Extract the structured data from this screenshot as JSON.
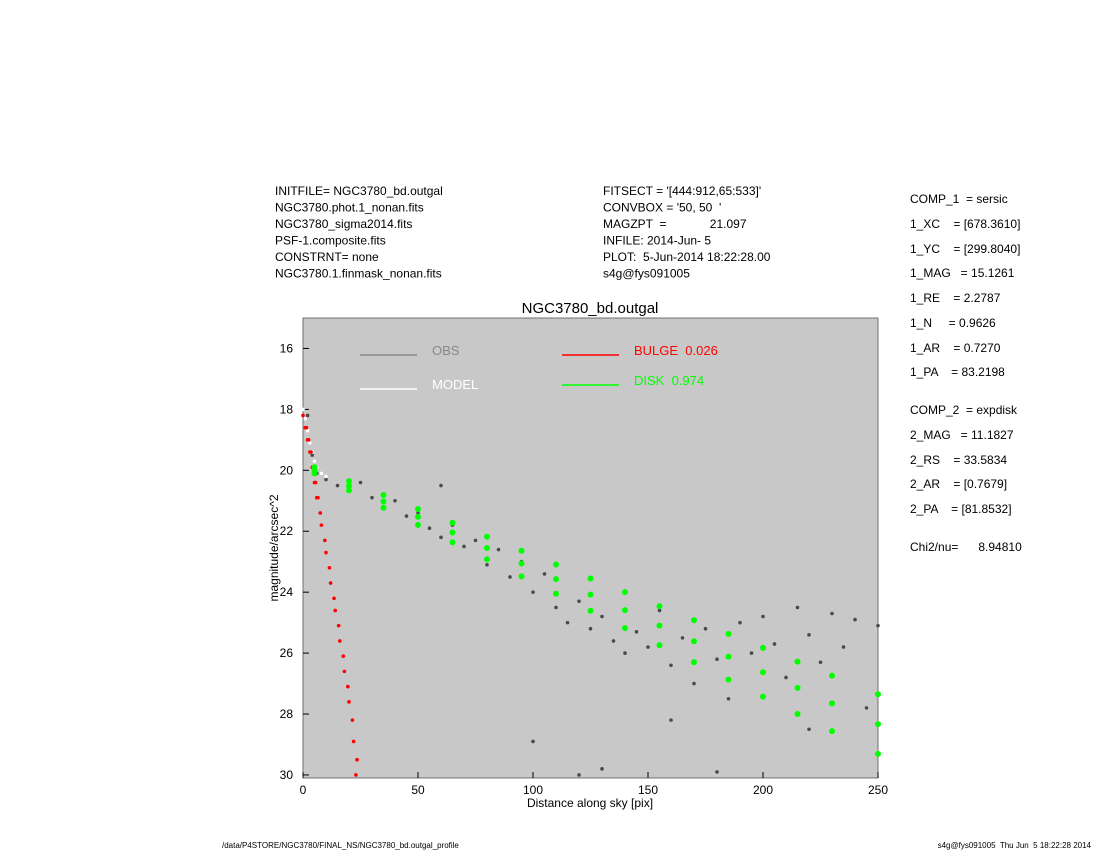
{
  "header": {
    "left": [
      "INITFILE= NGC3780_bd.outgal",
      "NGC3780.phot.1_nonan.fits",
      "NGC3780_sigma2014.fits",
      "PSF-1.composite.fits",
      "CONSTRNT= none",
      "NGC3780.1.finmask_nonan.fits"
    ],
    "middle": [
      "FITSECT = '[444:912,65:533]'",
      "CONVBOX = '50, 50  '",
      "MAGZPT  =             21.097",
      "INFILE: 2014-Jun- 5",
      "PLOT:  5-Jun-2014 18:22:28.00",
      "s4g@fys091005"
    ]
  },
  "params": [
    "COMP_1  = sersic",
    "1_XC    = [678.3610]",
    "1_YC    = [299.8040]",
    "1_MAG   = 15.1261",
    "1_RE    = 2.2787",
    "1_N     = 0.9626",
    "1_AR    = 0.7270",
    "1_PA    = 83.2198",
    "COMP_2  = expdisk",
    "2_MAG   = 11.1827",
    "2_RS    = 33.5834",
    "2_AR    = [0.7679]",
    "2_PA    = [81.8532]",
    "Chi2/nu=      8.94810"
  ],
  "footer": {
    "left": "/data/P4STORE/NGC3780/FINAL_NS/NGC3780_bd.outgal_profile",
    "right": "s4g@fys091005  Thu Jun  5 18:22:28 2014"
  },
  "chart_data": {
    "type": "scatter",
    "title": "NGC3780_bd.outgal",
    "x_label": "Distance along sky [pix]",
    "y_label": "magnitude/arcsec^2",
    "xlim": [
      0,
      250
    ],
    "ylim": [
      15,
      30.1
    ],
    "y_inverted": true,
    "xticks": [
      0,
      50,
      100,
      150,
      200,
      250
    ],
    "yticks": [
      16,
      18,
      20,
      22,
      24,
      26,
      28,
      30
    ],
    "background": "#c8c8c8",
    "series": [
      {
        "name": "OBS",
        "color": "#4a4a4a",
        "legend_color": "#888888",
        "x": [
          2,
          4,
          6,
          10,
          15,
          20,
          25,
          30,
          35,
          40,
          45,
          50,
          55,
          60,
          65,
          70,
          75,
          80,
          85,
          90,
          95,
          100,
          105,
          110,
          115,
          120,
          125,
          130,
          135,
          140,
          145,
          150,
          155,
          160,
          165,
          170,
          175,
          180,
          185,
          190,
          195,
          200,
          205,
          210,
          215,
          220,
          225,
          230,
          235,
          240,
          245,
          250,
          130,
          180,
          220,
          100,
          160,
          60,
          120
        ],
        "values": [
          18.2,
          19.5,
          20.1,
          20.3,
          20.5,
          20.6,
          20.4,
          20.9,
          21.2,
          21.0,
          21.5,
          21.4,
          21.9,
          22.2,
          21.8,
          22.5,
          22.3,
          23.1,
          22.6,
          23.5,
          23.0,
          24.0,
          23.4,
          24.5,
          25.0,
          24.3,
          25.2,
          24.8,
          25.6,
          26.0,
          25.3,
          25.8,
          24.6,
          26.4,
          25.5,
          27.0,
          25.2,
          26.2,
          27.5,
          25.0,
          26.0,
          24.8,
          25.7,
          26.8,
          24.5,
          25.4,
          26.3,
          24.7,
          25.8,
          24.9,
          27.8,
          25.1,
          29.8,
          29.9,
          28.5,
          28.9,
          28.2,
          20.5,
          30.0
        ]
      },
      {
        "name": "MODEL",
        "color": "#ffffff",
        "legend_color": "#ffffff",
        "x": [
          0,
          1,
          2,
          3,
          4,
          5,
          6,
          8,
          10
        ],
        "values": [
          18.0,
          18.3,
          18.7,
          19.1,
          19.4,
          19.7,
          19.9,
          20.1,
          20.2
        ]
      },
      {
        "name": "BULGE  0.026",
        "color": "#ff0000",
        "legend_color": "#ff0000",
        "x": [
          0,
          1,
          2,
          3,
          4,
          5,
          6,
          8,
          10,
          12,
          14,
          16,
          18,
          20,
          22,
          23,
          1.5,
          2.5,
          3.5,
          4.5,
          5.5,
          6.5,
          7.5,
          9.5,
          11.5,
          13.5,
          15.5,
          17.5,
          19.5,
          21.5,
          23.5
        ],
        "values": [
          18.2,
          18.6,
          19.0,
          19.4,
          19.9,
          20.4,
          20.9,
          21.8,
          22.7,
          23.7,
          24.6,
          25.6,
          26.6,
          27.6,
          28.9,
          30.0,
          18.6,
          19.0,
          19.4,
          19.9,
          20.4,
          20.9,
          21.4,
          22.3,
          23.2,
          24.2,
          25.1,
          26.1,
          27.1,
          28.2,
          29.5
        ]
      },
      {
        "name": "DISK  0.974",
        "color": "#00ff00",
        "legend_color": "#00ff00",
        "x": [
          5,
          20,
          35,
          50,
          65,
          80,
          95,
          110,
          125,
          140,
          155,
          170,
          185,
          200,
          215,
          230,
          250,
          5,
          20,
          35,
          50,
          65,
          80,
          95,
          110,
          125,
          140,
          155,
          170,
          185,
          200,
          215,
          230,
          250,
          5,
          20,
          35,
          50,
          65,
          80,
          95,
          110,
          125,
          140,
          155,
          170,
          185,
          200,
          215,
          230,
          250
        ],
        "values": [
          19.9,
          20.36,
          20.81,
          21.27,
          21.72,
          22.18,
          22.64,
          23.09,
          23.55,
          24.0,
          24.46,
          24.92,
          25.37,
          25.83,
          26.28,
          26.74,
          27.35,
          20.0,
          20.51,
          21.02,
          21.53,
          22.04,
          22.55,
          23.06,
          23.57,
          24.08,
          24.59,
          25.1,
          25.61,
          26.12,
          26.63,
          27.14,
          27.65,
          28.33,
          20.1,
          20.66,
          21.23,
          21.79,
          22.36,
          22.92,
          23.48,
          24.05,
          24.61,
          25.18,
          25.74,
          26.3,
          26.87,
          27.43,
          28.0,
          28.56,
          29.31
        ]
      }
    ]
  }
}
